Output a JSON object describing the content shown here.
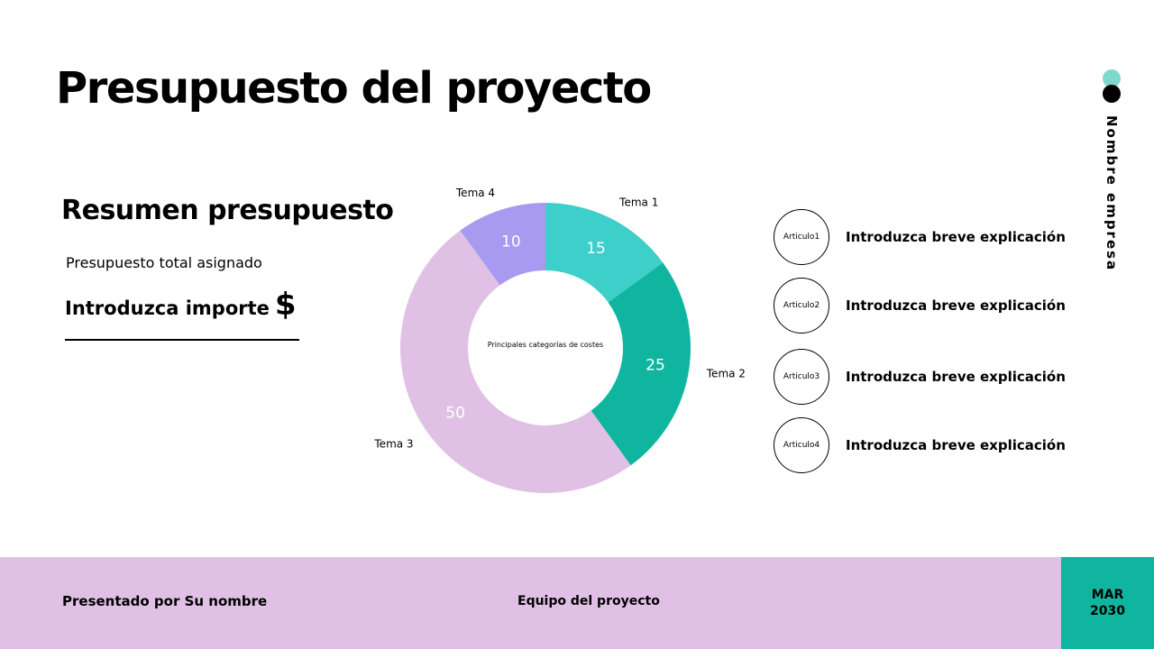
{
  "title": "Presupuesto del proyecto",
  "summary": {
    "heading": "Resumen presupuesto",
    "budget_label": "Presupuesto total asignado",
    "amount_text": "Introduzca importe",
    "currency_symbol": "$"
  },
  "chart_data": {
    "type": "pie",
    "center_label": "Principales categorías de costes",
    "categories": [
      "Tema 1",
      "Tema 2",
      "Tema 3",
      "Tema 4"
    ],
    "values": [
      15,
      25,
      50,
      10
    ],
    "colors": [
      "#3ecfca",
      "#10b5a0",
      "#e0c1e5",
      "#a89af0"
    ],
    "label_color": "#ffffff",
    "legend": "category labels outside each slice"
  },
  "items": [
    {
      "label": "Articulo1",
      "text": "Introduzca breve explicación"
    },
    {
      "label": "Articulo2",
      "text": "Introduzca breve explicación"
    },
    {
      "label": "Articulo3",
      "text": "Introduzca breve explicación"
    },
    {
      "label": "Articulo4",
      "text": "Introduzca breve explicación"
    }
  ],
  "company": "Nombre empresa",
  "brand_colors": {
    "dot_top": "#7fd8cb",
    "dot_bottom": "#000000"
  },
  "footer": {
    "presenter": "Presentado por Su nombre",
    "team": "Equipo del proyecto",
    "month": "MAR",
    "year": "2030",
    "background": "#e0c1e5",
    "date_background": "#10b5a0"
  }
}
